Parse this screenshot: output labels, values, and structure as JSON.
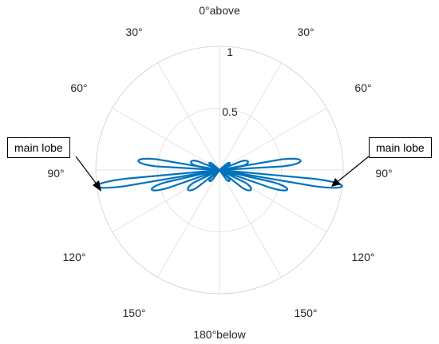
{
  "chart_data": {
    "type": "line",
    "coordinate_system": "polar",
    "theta_zero": "top",
    "theta_direction": "clockwise",
    "theta_range_deg": [
      0,
      180
    ],
    "rlim": [
      0,
      1
    ],
    "r_ticks": [
      0.5,
      1
    ],
    "r_tick_labels": [
      "0.5",
      "1"
    ],
    "theta_ticks_deg": [
      0,
      30,
      60,
      90,
      120,
      150,
      180,
      -30,
      -60,
      -90,
      -120,
      -150
    ],
    "theta_tick_labels": {
      "top": "0°above",
      "bottom": "180°below",
      "right": [
        "30°",
        "60°",
        "90°",
        "120°",
        "150°"
      ],
      "left": [
        "30°",
        "60°",
        "90°",
        "120°",
        "150°"
      ]
    },
    "grid": true,
    "series_color": "#0072BD",
    "series": [
      {
        "description": "radiation pattern, side = +1 right / -1 left; theta from top; lobe peaks (symmetric)",
        "lobes": [
          {
            "theta_deg": 97.5,
            "r": 1.0
          },
          {
            "theta_deg": 83.5,
            "r": 0.66
          },
          {
            "theta_deg": 106.0,
            "r": 0.57
          },
          {
            "theta_deg": 74.0,
            "r": 0.24
          },
          {
            "theta_deg": 122.0,
            "r": 0.3
          },
          {
            "theta_deg": 55.0,
            "r": 0.1
          },
          {
            "theta_deg": 138.0,
            "r": 0.12
          }
        ]
      }
    ],
    "annotations": [
      {
        "text": "main lobe",
        "side": "left",
        "target_theta_deg": 97.5,
        "target_r": 1.0
      },
      {
        "text": "main lobe",
        "side": "right",
        "target_theta_deg": 97.5,
        "target_r": 1.0
      }
    ]
  }
}
